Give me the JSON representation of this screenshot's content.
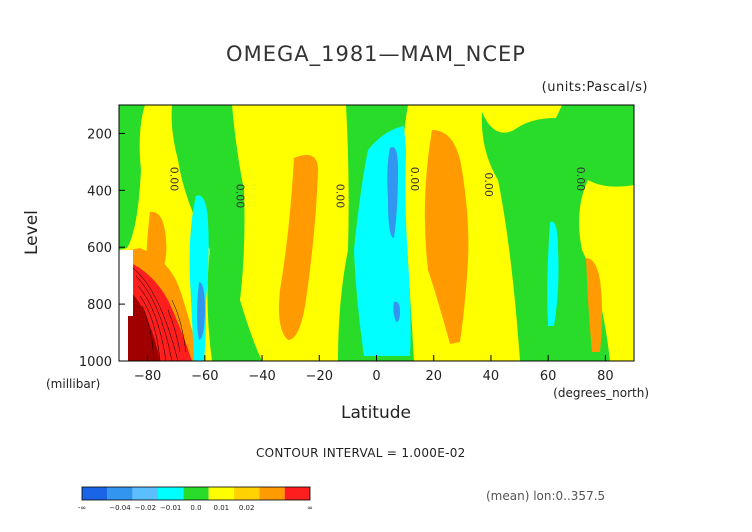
{
  "chart_data": {
    "type": "heatmap",
    "title": "OMEGA_1981—MAM_NCEP",
    "units": "(units:Pascal/s)",
    "xlabel": "Latitude",
    "x_unit": "(degrees_north)",
    "ylabel": "Level",
    "y_unit": "(millibar)",
    "x_ticks": [
      -80,
      -60,
      -40,
      -20,
      0,
      20,
      40,
      60,
      80
    ],
    "y_ticks": [
      200,
      400,
      600,
      800,
      1000
    ],
    "xlim": [
      -90,
      90
    ],
    "ylim": [
      1000,
      100
    ],
    "contour_interval_text": "CONTOUR INTERVAL = 1.000E-02",
    "footer_text": "(mean) lon:0..357.5",
    "contour_labels": [
      {
        "text": "0.00",
        "lat": -72,
        "level": 360
      },
      {
        "text": "0.00",
        "lat": -49,
        "level": 420
      },
      {
        "text": "0.00",
        "lat": -14,
        "level": 420
      },
      {
        "text": "0.00",
        "lat": 12,
        "level": 360
      },
      {
        "text": "0.00",
        "lat": 38,
        "level": 380
      },
      {
        "text": "0.00",
        "lat": 70,
        "level": 360
      }
    ],
    "colorbar": {
      "colors": [
        "#1a64e6",
        "#3296f0",
        "#5abeff",
        "#00ffff",
        "#2adc2a",
        "#ffff00",
        "#ffd200",
        "#ff9b00",
        "#ff1e1e"
      ],
      "labels": [
        "-∞",
        "−0.04",
        "−0.02",
        "−0.01",
        "0.0",
        "0.01",
        "0.02",
        "∞"
      ]
    }
  }
}
